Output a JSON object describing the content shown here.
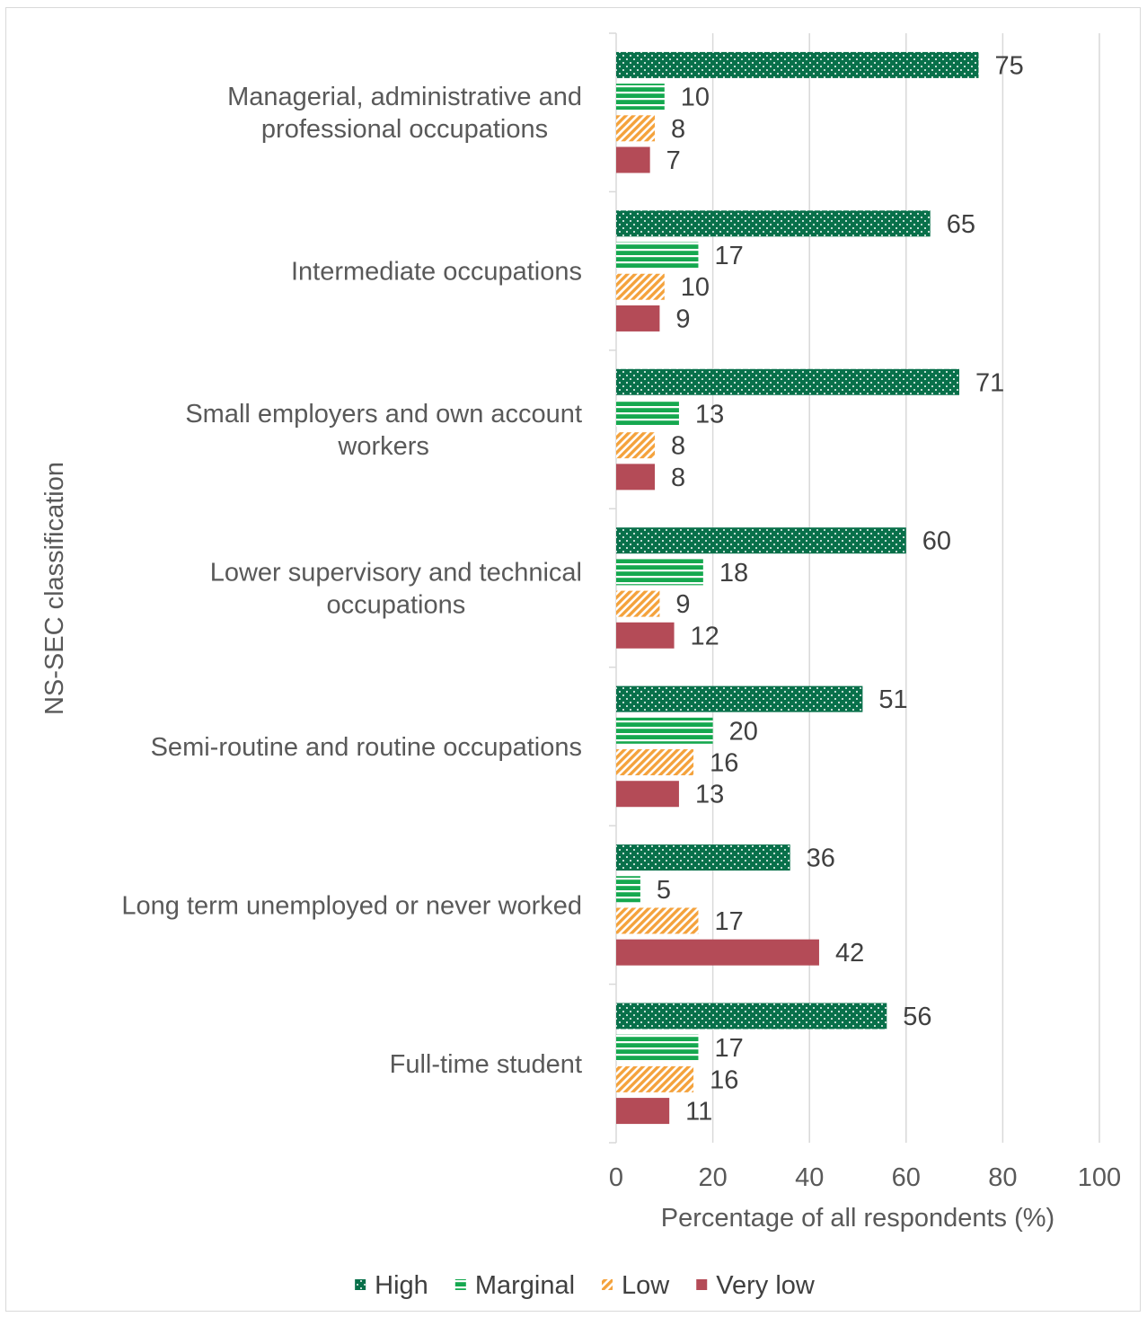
{
  "chart_data": {
    "type": "bar",
    "orientation": "horizontal",
    "categories": [
      [
        "Managerial, administrative and",
        "professional occupations"
      ],
      [
        "Intermediate occupations"
      ],
      [
        "Small employers and own account",
        "workers"
      ],
      [
        "Lower supervisory and technical",
        "occupations"
      ],
      [
        "Semi-routine and routine occupations"
      ],
      [
        "Long term unemployed or never worked"
      ],
      [
        "Full-time student"
      ]
    ],
    "series": [
      {
        "name": "High",
        "values": [
          75,
          65,
          71,
          60,
          51,
          36,
          56
        ],
        "color": "#08704a",
        "pattern": "dots"
      },
      {
        "name": "Marginal",
        "values": [
          10,
          17,
          13,
          18,
          20,
          5,
          17
        ],
        "color": "#15a84f",
        "pattern": "horizontal-stripes"
      },
      {
        "name": "Low",
        "values": [
          8,
          10,
          8,
          9,
          16,
          17,
          16
        ],
        "color": "#f4a23c",
        "pattern": "diagonal-hatch"
      },
      {
        "name": "Very low",
        "values": [
          7,
          9,
          8,
          12,
          13,
          42,
          11
        ],
        "color": "#b44b57",
        "pattern": "solid"
      }
    ],
    "xlim": [
      0,
      100
    ],
    "xticks": [
      "0",
      "20",
      "40",
      "60",
      "80",
      "100"
    ],
    "xlabel": "Percentage of all respondents (%)",
    "ylabel": "NS-SEC classification",
    "grid": "vertical",
    "legend_position": "bottom"
  }
}
